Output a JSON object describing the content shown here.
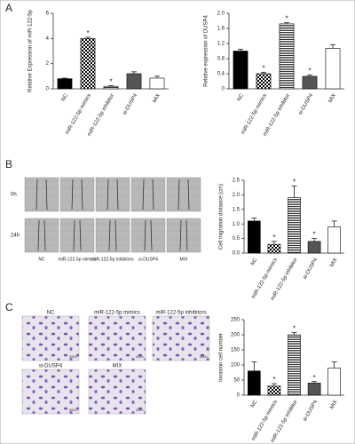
{
  "panels": [
    {
      "label": "A"
    },
    {
      "label": "B",
      "image_rows": [
        "0h",
        "24h"
      ],
      "image_labels": [
        "NC",
        "miR-122-5p mimics",
        "miR-122-5p inhibitors",
        "si-DUSP4",
        "MIX"
      ]
    },
    {
      "label": "C",
      "image_labels": [
        "NC",
        "miR-122-5p mimics",
        "miR-122-5p inhibitors",
        "si-DUSP4",
        "MIX"
      ],
      "scale_label": "200×"
    }
  ],
  "chart_data": [
    {
      "type": "bar",
      "y_label": "Relative Expression of miR-122-5p",
      "categories": [
        "NC",
        "miR-122-5p mimics",
        "miR-122-5p inhibitor",
        "si-DUSP4",
        "MIX"
      ],
      "values": [
        0.8,
        4.0,
        0.2,
        1.2,
        0.85
      ],
      "errors": [
        0.05,
        0.1,
        0.05,
        0.15,
        0.15
      ],
      "significant": [
        false,
        true,
        true,
        false,
        false
      ],
      "significance_marker": "*",
      "fills": [
        "#000000",
        "checker",
        "hstripes",
        "#555555",
        "#ffffff"
      ],
      "ylim": [
        0,
        6
      ],
      "yticks": [
        0,
        2,
        4,
        6
      ]
    },
    {
      "type": "bar",
      "y_label": "Relative expression of DUSP4",
      "categories": [
        "NC",
        "miR-122-5p mimics",
        "miR-122-5p inhibitor",
        "si-DUSP4",
        "MIX"
      ],
      "values": [
        1.0,
        0.4,
        1.72,
        0.33,
        1.07
      ],
      "errors": [
        0.05,
        0.04,
        0.03,
        0.04,
        0.1
      ],
      "significant": [
        false,
        true,
        true,
        true,
        false
      ],
      "significance_marker": "*",
      "fills": [
        "#000000",
        "checker",
        "hstripes",
        "#555555",
        "#ffffff"
      ],
      "ylim": [
        0,
        2
      ],
      "yticks": [
        0,
        0.4,
        0.8,
        1.2,
        1.6,
        {
          "value": 2,
          "label": "2.0"
        }
      ]
    },
    {
      "type": "bar",
      "y_label": "Cell migration distance (cm)",
      "categories": [
        "NC",
        "miR-122-5p mimics",
        "miR-122-5p inhibitor",
        "si-DUSP4",
        "MIX"
      ],
      "values": [
        1.1,
        0.3,
        1.9,
        0.4,
        0.9
      ],
      "errors": [
        0.1,
        0.1,
        0.4,
        0.1,
        0.2
      ],
      "significant": [
        false,
        true,
        true,
        true,
        false
      ],
      "significance_marker": "*",
      "fills": [
        "#000000",
        "checker",
        "hstripes",
        "#555555",
        "#ffffff"
      ],
      "ylim": [
        0,
        2.5
      ],
      "yticks": [
        {
          "value": 0,
          "label": "0.0"
        },
        0.5,
        {
          "value": 1,
          "label": "1.0"
        },
        1.5,
        {
          "value": 2,
          "label": "2.0"
        },
        2.5
      ]
    },
    {
      "type": "bar",
      "y_label": "Invasion cell number",
      "categories": [
        "NC",
        "miR-122-5p mimics",
        "miR-122-5p inhibitor",
        "si-DUSP4",
        "MIX"
      ],
      "values": [
        80,
        30,
        200,
        40,
        90
      ],
      "errors": [
        30,
        8,
        8,
        5,
        20
      ],
      "significant": [
        false,
        true,
        true,
        true,
        false
      ],
      "significance_marker": "*",
      "fills": [
        "#000000",
        "checker",
        "hstripes",
        "#555555",
        "#ffffff"
      ],
      "ylim": [
        0,
        250
      ],
      "yticks": [
        0,
        50,
        100,
        150,
        200,
        250
      ]
    }
  ]
}
